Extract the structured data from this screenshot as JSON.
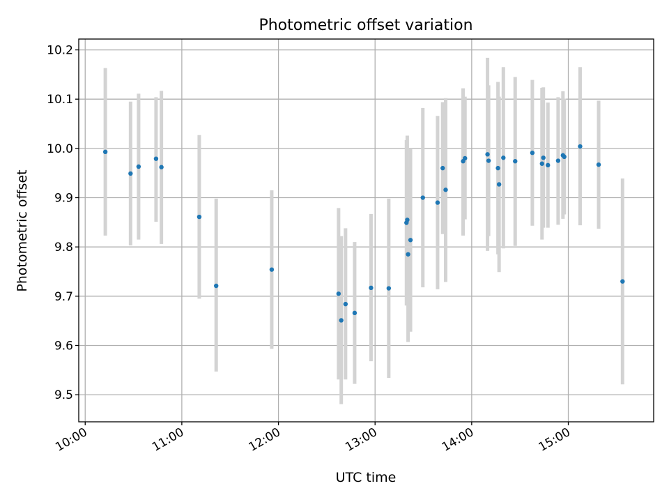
{
  "chart_data": {
    "type": "scatter",
    "title": "Photometric offset variation",
    "xlabel": "UTC time",
    "ylabel": "Photometric offset",
    "xlim": [
      "09:56",
      "15:53"
    ],
    "ylim": [
      9.445,
      10.222
    ],
    "grid": true,
    "x_ticks": [
      "10:00",
      "11:00",
      "12:00",
      "13:00",
      "14:00",
      "15:00"
    ],
    "y_ticks": [
      9.5,
      9.6,
      9.7,
      9.8,
      9.9,
      10.0,
      10.1,
      10.2
    ],
    "y_tick_labels": [
      "9.5",
      "9.6",
      "9.7",
      "9.8",
      "9.9",
      "10.0",
      "10.1",
      "10.2"
    ],
    "marker_color": "#1f77b4",
    "errorbar_color": "#d3d3d3",
    "points": [
      {
        "time": "10:12:30",
        "y": 9.993,
        "lo": 9.823,
        "hi": 10.163
      },
      {
        "time": "10:28:10",
        "y": 9.949,
        "lo": 9.803,
        "hi": 10.095
      },
      {
        "time": "10:33:10",
        "y": 9.963,
        "lo": 9.815,
        "hi": 10.111
      },
      {
        "time": "10:44:00",
        "y": 9.979,
        "lo": 9.851,
        "hi": 10.104
      },
      {
        "time": "10:47:20",
        "y": 9.962,
        "lo": 9.806,
        "hi": 10.117
      },
      {
        "time": "11:10:50",
        "y": 9.861,
        "lo": 9.695,
        "hi": 10.027
      },
      {
        "time": "11:21:20",
        "y": 9.721,
        "lo": 9.547,
        "hi": 9.898
      },
      {
        "time": "11:55:50",
        "y": 9.754,
        "lo": 9.593,
        "hi": 9.915
      },
      {
        "time": "12:37:20",
        "y": 9.705,
        "lo": 9.531,
        "hi": 9.879
      },
      {
        "time": "12:39:00",
        "y": 9.651,
        "lo": 9.481,
        "hi": 9.822
      },
      {
        "time": "12:41:40",
        "y": 9.684,
        "lo": 9.531,
        "hi": 9.838
      },
      {
        "time": "12:47:20",
        "y": 9.666,
        "lo": 9.522,
        "hi": 9.81
      },
      {
        "time": "12:57:30",
        "y": 9.717,
        "lo": 9.568,
        "hi": 9.867
      },
      {
        "time": "13:08:30",
        "y": 9.716,
        "lo": 9.534,
        "hi": 9.898
      },
      {
        "time": "13:19:30",
        "y": 9.849,
        "lo": 9.681,
        "hi": 10.017
      },
      {
        "time": "13:20:00",
        "y": 9.855,
        "lo": 9.685,
        "hi": 10.026
      },
      {
        "time": "13:20:30",
        "y": 9.785,
        "lo": 9.607,
        "hi": 9.963
      },
      {
        "time": "13:22:00",
        "y": 9.814,
        "lo": 9.628,
        "hi": 10.0
      },
      {
        "time": "13:29:40",
        "y": 9.9,
        "lo": 9.718,
        "hi": 10.082
      },
      {
        "time": "13:38:50",
        "y": 9.89,
        "lo": 9.714,
        "hi": 10.066
      },
      {
        "time": "13:42:00",
        "y": 9.96,
        "lo": 9.826,
        "hi": 10.094
      },
      {
        "time": "13:43:50",
        "y": 9.916,
        "lo": 9.729,
        "hi": 10.102
      },
      {
        "time": "13:54:40",
        "y": 9.974,
        "lo": 9.823,
        "hi": 10.122
      },
      {
        "time": "13:55:50",
        "y": 9.98,
        "lo": 9.856,
        "hi": 10.105
      },
      {
        "time": "14:09:50",
        "y": 9.988,
        "lo": 9.792,
        "hi": 10.184
      },
      {
        "time": "14:10:30",
        "y": 9.975,
        "lo": 9.822,
        "hi": 10.128
      },
      {
        "time": "14:16:20",
        "y": 9.96,
        "lo": 9.785,
        "hi": 10.135
      },
      {
        "time": "14:17:00",
        "y": 9.927,
        "lo": 9.749,
        "hi": 10.105
      },
      {
        "time": "14:19:40",
        "y": 9.981,
        "lo": 9.797,
        "hi": 10.165
      },
      {
        "time": "14:27:00",
        "y": 9.974,
        "lo": 9.802,
        "hi": 10.145
      },
      {
        "time": "14:37:40",
        "y": 9.991,
        "lo": 9.843,
        "hi": 10.139
      },
      {
        "time": "14:43:40",
        "y": 9.969,
        "lo": 9.815,
        "hi": 10.123
      },
      {
        "time": "14:44:30",
        "y": 9.981,
        "lo": 9.839,
        "hi": 10.124
      },
      {
        "time": "14:47:20",
        "y": 9.966,
        "lo": 9.839,
        "hi": 10.093
      },
      {
        "time": "14:53:40",
        "y": 9.975,
        "lo": 9.845,
        "hi": 10.104
      },
      {
        "time": "14:56:40",
        "y": 9.986,
        "lo": 9.857,
        "hi": 10.116
      },
      {
        "time": "14:57:30",
        "y": 9.983,
        "lo": 9.866,
        "hi": 10.101
      },
      {
        "time": "15:07:20",
        "y": 10.004,
        "lo": 9.844,
        "hi": 10.165
      },
      {
        "time": "15:18:50",
        "y": 9.967,
        "lo": 9.837,
        "hi": 10.097
      },
      {
        "time": "15:33:40",
        "y": 9.73,
        "lo": 9.521,
        "hi": 9.939
      }
    ]
  }
}
